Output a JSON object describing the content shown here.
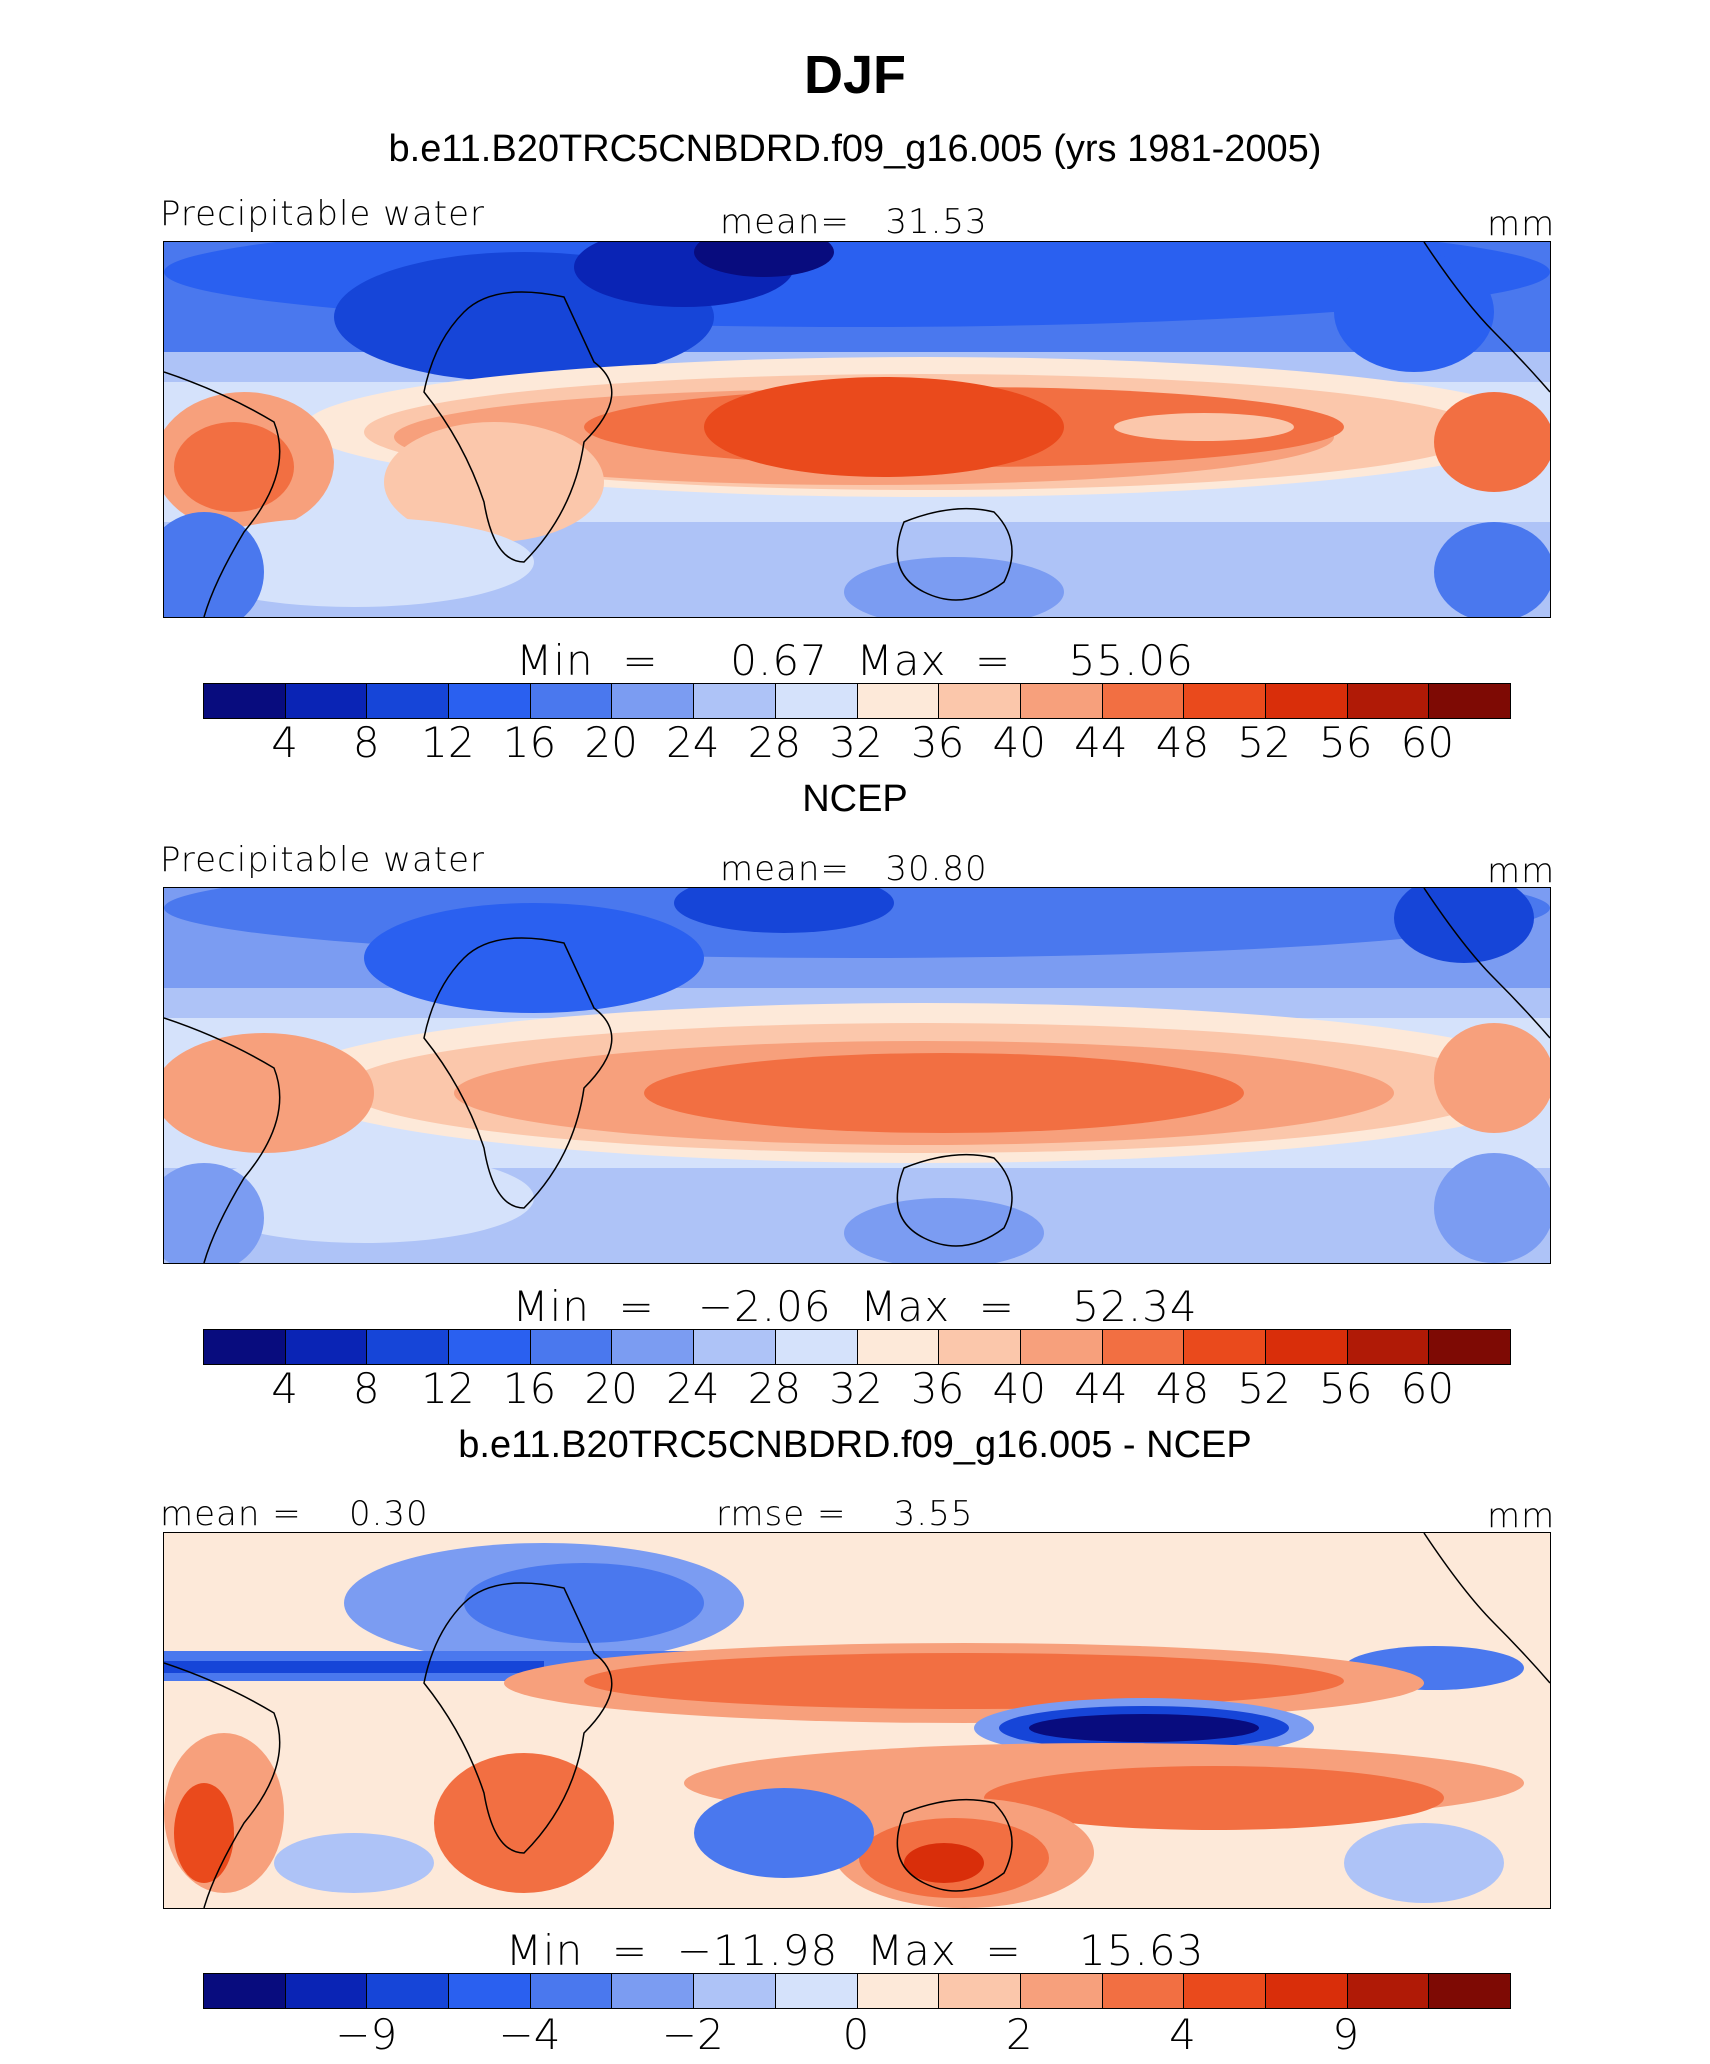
{
  "figure": {
    "title": "DJF"
  },
  "colors": [
    "#080c7e",
    "#0a24b5",
    "#1645d8",
    "#2a60f0",
    "#4a78ee",
    "#7b9cf2",
    "#aec3f7",
    "#d5e2fb",
    "#fde9d9",
    "#fbc7ab",
    "#f7a07c",
    "#f26f42",
    "#ea4a1c",
    "#d92e0a",
    "#b01a06",
    "#7e0a04"
  ],
  "panels": [
    {
      "title": "b.e11.B20TRC5CNBDRD.f09_g16.005 (yrs 1981-2005)",
      "left_label": "Precipitable water",
      "center_label": "mean=   31.53",
      "right_label": "mm",
      "minmax": "Min  =     0.67  Max  =    55.06",
      "ticks": [
        "4",
        "8",
        "12",
        "16",
        "20",
        "24",
        "28",
        "32",
        "36",
        "40",
        "44",
        "48",
        "52",
        "56",
        "60"
      ]
    },
    {
      "title": "NCEP",
      "left_label": "Precipitable water",
      "center_label": "mean=   30.80",
      "right_label": "mm",
      "minmax": "Min  =   −2.06  Max  =    52.34",
      "ticks": [
        "4",
        "8",
        "12",
        "16",
        "20",
        "24",
        "28",
        "32",
        "36",
        "40",
        "44",
        "48",
        "52",
        "56",
        "60"
      ]
    },
    {
      "title": "b.e11.B20TRC5CNBDRD.f09_g16.005 - NCEP",
      "left_label": "mean =    0.30",
      "center_label": "rmse =    3.55",
      "right_label": "mm",
      "minmax": "Min  =  −11.98  Max  =    15.63",
      "ticks": [
        "−9",
        "−4",
        "−2",
        "0",
        "2",
        "4",
        "9"
      ]
    }
  ]
}
